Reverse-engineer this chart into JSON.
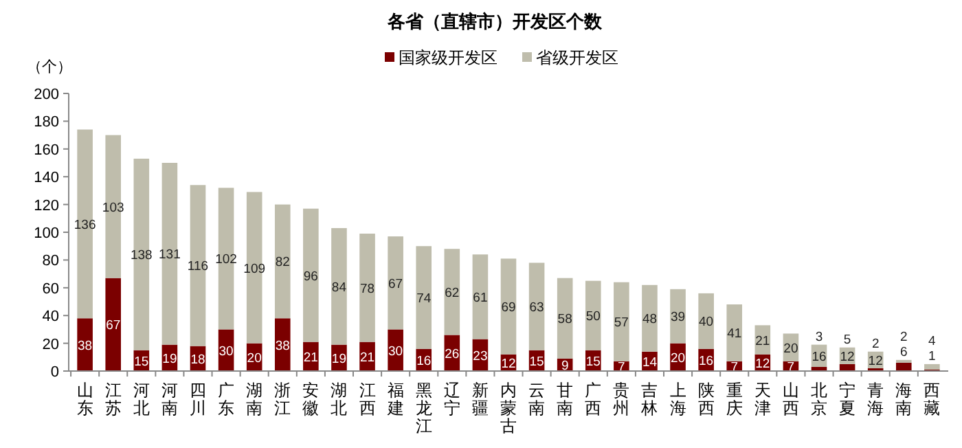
{
  "chart_data": {
    "type": "bar",
    "stacked": true,
    "title": "各省（直辖市）开发区个数",
    "ylabel": "（个）",
    "categories": [
      "山东",
      "江苏",
      "河北",
      "河南",
      "四川",
      "广东",
      "湖南",
      "浙江",
      "安徽",
      "湖北",
      "江西",
      "福建",
      "黑龙江",
      "辽宁",
      "新疆",
      "内蒙古",
      "云南",
      "甘南",
      "广西",
      "贵州",
      "吉林",
      "上海",
      "陕西",
      "重庆",
      "天津",
      "山西",
      "北京",
      "宁夏",
      "青海",
      "海南",
      "西藏"
    ],
    "series": [
      {
        "name": "国家级开发区",
        "color": "#7b0000",
        "values": [
          38,
          67,
          15,
          19,
          18,
          30,
          20,
          38,
          21,
          19,
          21,
          30,
          16,
          26,
          23,
          12,
          15,
          9,
          15,
          7,
          14,
          20,
          16,
          7,
          12,
          7,
          3,
          5,
          2,
          6,
          1
        ]
      },
      {
        "name": "省级开发区",
        "color": "#bfbdac",
        "values": [
          136,
          103,
          138,
          131,
          116,
          102,
          109,
          82,
          96,
          84,
          78,
          67,
          74,
          62,
          61,
          69,
          63,
          58,
          50,
          57,
          48,
          39,
          40,
          41,
          21,
          20,
          16,
          12,
          12,
          2,
          4
        ]
      }
    ],
    "ylim": [
      0,
      200
    ],
    "yticks": [
      0,
      20,
      40,
      60,
      80,
      100,
      120,
      140,
      160,
      180,
      200
    ],
    "grid": false,
    "legend": "top",
    "data_labels": true
  }
}
